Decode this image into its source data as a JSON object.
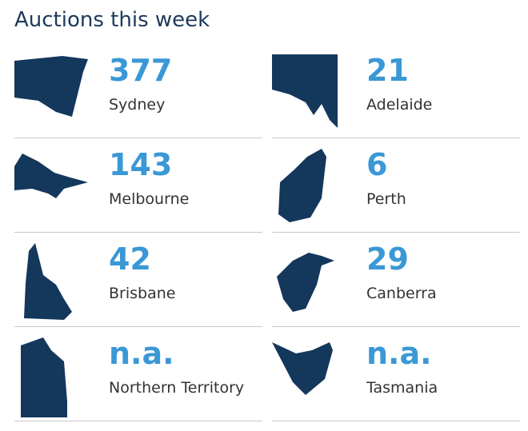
{
  "title": "Auctions this week",
  "items": [
    {
      "value": 377,
      "label": "Sydney"
    },
    {
      "value": 21,
      "label": "Adelaide"
    },
    {
      "value": 143,
      "label": "Melbourne"
    },
    {
      "value": 6,
      "label": "Perth"
    },
    {
      "value": 42,
      "label": "Brisbane"
    },
    {
      "value": 29,
      "label": "Canberra"
    },
    {
      "value": "n.a.",
      "label": "Northern Territory"
    },
    {
      "value": "n.a.",
      "label": "Tasmania"
    }
  ]
}
